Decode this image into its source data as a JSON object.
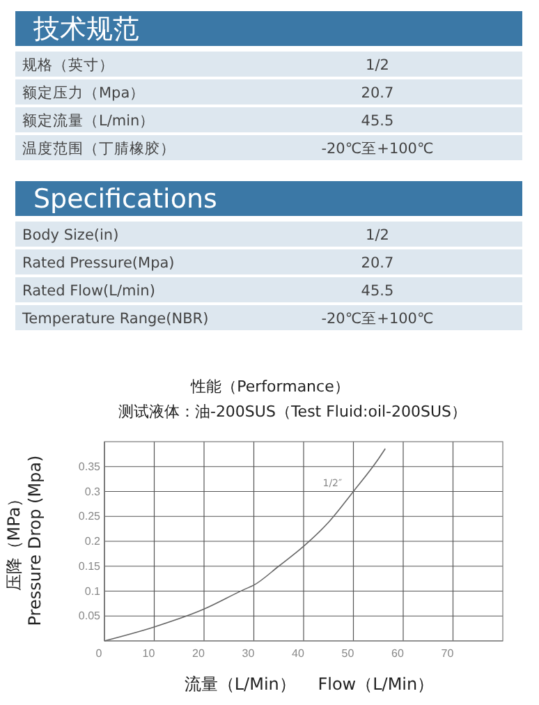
{
  "chart_data": [
    {
      "type": "other",
      "title": "技术规范",
      "annotations": [
        "规格（英寸）",
        "1/2",
        "额定压力（Mpa）",
        "20.7",
        "额定流量（L/min）",
        "45.5",
        "温度范围（丁腈橡胶）",
        "-20℃至+100℃"
      ]
    },
    {
      "type": "other",
      "title": "Specifications",
      "annotations": [
        "Body Size(in)",
        "1/2",
        "Rated Pressure(Mpa)",
        "20.7",
        "Rated Flow(L/min)",
        "45.5",
        "Temperature Range(NBR)",
        "-20℃至+100℃"
      ]
    },
    {
      "type": "line",
      "title": "性能（Performance）",
      "subtitle": "测试液体：油-200SUS（Test Fluid:oil-200SUS）",
      "xlabel": "流量（L/Min）　 Flow（L/Min）",
      "ylabel": "压降（MPa）\nPressure Drop (Mpa)",
      "xlim": [
        0,
        80
      ],
      "xticks": [
        0,
        10,
        20,
        30,
        40,
        50,
        60,
        70
      ],
      "ylim": [
        0,
        0.4
      ],
      "yticks": [
        0.05,
        0.1,
        0.15,
        0.2,
        0.25,
        0.3,
        0.35
      ],
      "grid": true,
      "marker": "none",
      "line_style": "solid",
      "series": [
        {
          "name": "1/2″",
          "color": "#666666",
          "x": [
            0,
            10,
            20,
            28,
            30,
            35,
            40,
            45,
            50,
            55,
            56.4
          ],
          "values": [
            0,
            0.028,
            0.064,
            0.103,
            0.112,
            0.15,
            0.19,
            0.238,
            0.3,
            0.365,
            0.386
          ]
        }
      ]
    }
  ]
}
